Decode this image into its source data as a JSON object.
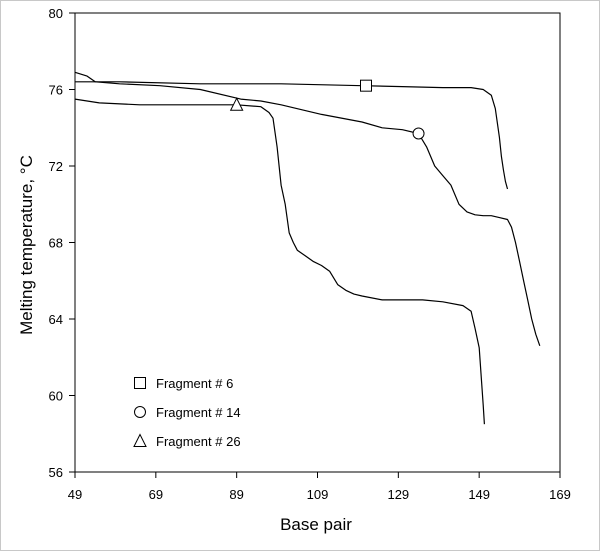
{
  "chart_data": {
    "type": "line",
    "xlabel": "Base pair",
    "ylabel": "Melting temperature, °C",
    "xlim": [
      49,
      169
    ],
    "ylim": [
      56,
      80
    ],
    "xticks": [
      49,
      69,
      89,
      109,
      129,
      149,
      169
    ],
    "yticks": [
      56,
      60,
      64,
      68,
      72,
      76,
      80
    ],
    "grid": false,
    "legend_position": "bottom-left",
    "series": [
      {
        "name": "Fragment # 6",
        "marker": "square",
        "marker_point": [
          121,
          76.2
        ],
        "x": [
          49,
          60,
          80,
          100,
          120,
          130,
          140,
          147,
          150,
          152,
          153,
          154,
          154.5,
          155,
          155.5,
          156
        ],
        "y": [
          76.4,
          76.4,
          76.3,
          76.3,
          76.2,
          76.15,
          76.1,
          76.1,
          76.0,
          75.7,
          75.0,
          73.5,
          72.5,
          71.8,
          71.2,
          70.8
        ]
      },
      {
        "name": "Fragment # 14",
        "marker": "circle",
        "marker_point": [
          134,
          73.7
        ],
        "x": [
          49,
          52,
          54,
          60,
          70,
          80,
          90,
          95,
          100,
          110,
          120,
          125,
          130,
          134,
          136,
          138,
          140,
          142,
          144,
          146,
          148,
          150,
          152,
          154,
          156,
          157,
          158,
          159,
          160,
          161,
          162,
          163,
          164
        ],
        "y": [
          76.9,
          76.7,
          76.4,
          76.3,
          76.2,
          76.0,
          75.5,
          75.4,
          75.2,
          74.7,
          74.3,
          74.0,
          73.9,
          73.7,
          73.0,
          72.0,
          71.5,
          71.0,
          70.0,
          69.6,
          69.45,
          69.4,
          69.4,
          69.3,
          69.2,
          68.8,
          68.0,
          67.0,
          66.0,
          65.0,
          64.0,
          63.2,
          62.6
        ]
      },
      {
        "name": "Fragment # 26",
        "marker": "triangle",
        "marker_point": [
          89,
          75.2
        ],
        "x": [
          49,
          55,
          65,
          75,
          85,
          89,
          95,
          97,
          98,
          99,
          100,
          101,
          102,
          103,
          104,
          106,
          108,
          110,
          112,
          114,
          116,
          118,
          120,
          125,
          130,
          135,
          140,
          145,
          147,
          148,
          149,
          149.5,
          150,
          150.3
        ],
        "y": [
          75.5,
          75.3,
          75.2,
          75.2,
          75.2,
          75.2,
          75.1,
          74.8,
          74.5,
          73.0,
          71.0,
          70.0,
          68.5,
          68.0,
          67.6,
          67.3,
          67.0,
          66.8,
          66.5,
          65.8,
          65.5,
          65.3,
          65.2,
          65.0,
          65.0,
          65.0,
          64.9,
          64.7,
          64.4,
          63.5,
          62.5,
          61.0,
          59.5,
          58.5
        ]
      }
    ]
  }
}
